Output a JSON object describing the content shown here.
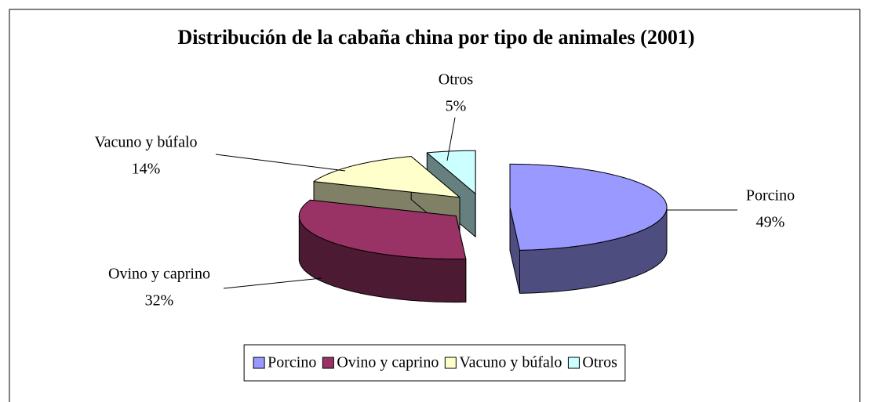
{
  "chart_data": {
    "type": "pie3d",
    "title": "Distribución de la cabaña china por tipo de animales (2001)",
    "categories": [
      "Porcino",
      "Ovino y caprino",
      "Vacuno y búfalo",
      "Otros"
    ],
    "values": [
      49,
      32,
      14,
      5
    ],
    "value_labels": [
      "49%",
      "32%",
      "14%",
      "5%"
    ],
    "colors": [
      "#9999ff",
      "#993366",
      "#ffffcc",
      "#ccffff"
    ],
    "legend": "bottom"
  }
}
